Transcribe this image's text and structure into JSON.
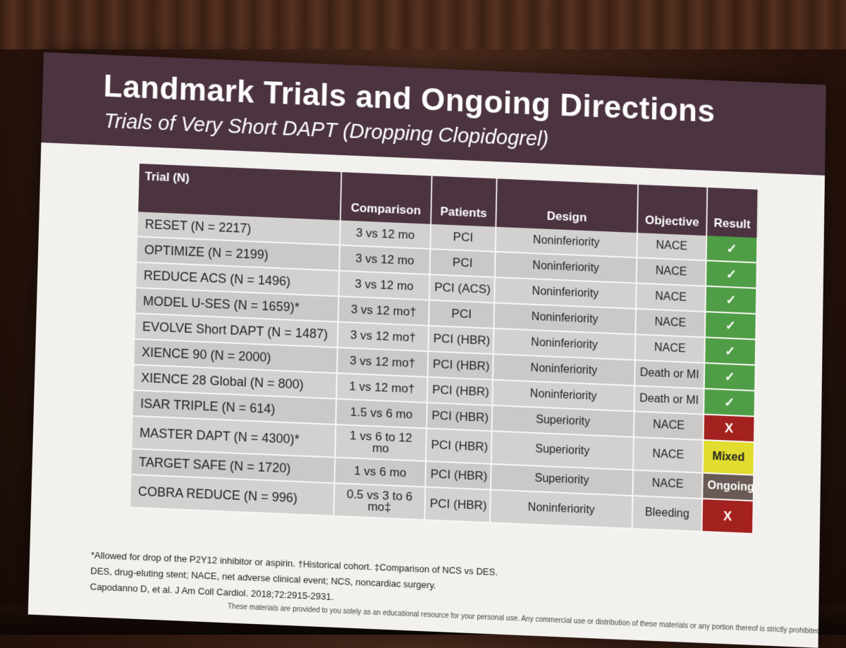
{
  "slide": {
    "title": "Landmark Trials and Ongoing Directions",
    "subtitle": "Trials of Very Short DAPT (Dropping Clopidogrel)"
  },
  "table": {
    "headers": [
      "Trial (N)",
      "Comparison",
      "Patients",
      "Design",
      "Objective",
      "Result"
    ],
    "rows": [
      {
        "trial": "RESET (N = 2217)",
        "comparison": "3 vs 12 mo",
        "patients": "PCI",
        "design": "Noninferiority",
        "objective": "NACE",
        "result": "✓",
        "result_type": "check"
      },
      {
        "trial": "OPTIMIZE (N = 2199)",
        "comparison": "3 vs 12 mo",
        "patients": "PCI",
        "design": "Noninferiority",
        "objective": "NACE",
        "result": "✓",
        "result_type": "check"
      },
      {
        "trial": "REDUCE ACS (N = 1496)",
        "comparison": "3 vs 12 mo",
        "patients": "PCI (ACS)",
        "design": "Noninferiority",
        "objective": "NACE",
        "result": "✓",
        "result_type": "check"
      },
      {
        "trial": "MODEL U-SES (N = 1659)*",
        "comparison": "3 vs 12 mo†",
        "patients": "PCI",
        "design": "Noninferiority",
        "objective": "NACE",
        "result": "✓",
        "result_type": "check"
      },
      {
        "trial": "EVOLVE Short DAPT (N = 1487)",
        "comparison": "3 vs 12 mo†",
        "patients": "PCI (HBR)",
        "design": "Noninferiority",
        "objective": "NACE",
        "result": "✓",
        "result_type": "check"
      },
      {
        "trial": "XIENCE 90 (N = 2000)",
        "comparison": "3 vs 12 mo†",
        "patients": "PCI (HBR)",
        "design": "Noninferiority",
        "objective": "Death or MI",
        "result": "✓",
        "result_type": "check"
      },
      {
        "trial": "XIENCE 28 Global (N = 800)",
        "comparison": "1 vs 12 mo†",
        "patients": "PCI (HBR)",
        "design": "Noninferiority",
        "objective": "Death or MI",
        "result": "✓",
        "result_type": "check"
      },
      {
        "trial": "ISAR TRIPLE (N = 614)",
        "comparison": "1.5 vs 6 mo",
        "patients": "PCI (HBR)",
        "design": "Superiority",
        "objective": "NACE",
        "result": "X",
        "result_type": "x"
      },
      {
        "trial": "MASTER DAPT (N = 4300)*",
        "comparison": "1 vs 6 to 12 mo",
        "patients": "PCI (HBR)",
        "design": "Superiority",
        "objective": "NACE",
        "result": "Mixed",
        "result_type": "mixed"
      },
      {
        "trial": "TARGET SAFE (N = 1720)",
        "comparison": "1 vs 6 mo",
        "patients": "PCI (HBR)",
        "design": "Superiority",
        "objective": "NACE",
        "result": "Ongoing",
        "result_type": "ongoing"
      },
      {
        "trial": "COBRA REDUCE (N = 996)",
        "comparison": "0.5 vs 3 to 6 mo‡",
        "patients": "PCI (HBR)",
        "design": "Noninferiority",
        "objective": "Bleeding",
        "result": "X",
        "result_type": "x"
      }
    ]
  },
  "footnotes": {
    "line1": "*Allowed for drop of the P2Y12 inhibitor or aspirin. †Historical cohort. ‡Comparison of NCS vs DES.",
    "line2": "DES, drug-eluting stent; NACE, net adverse clinical event; NCS, noncardiac surgery.",
    "citation": "Capodanno D, et al. J Am Coll Cardiol. 2018;72:2915-2931.",
    "disclaimer": "These materials are provided to you solely as an educational resource for your personal use. Any commercial use or distribution of these materials or any portion thereof is strictly prohibited."
  },
  "colors": {
    "header": "#4b3340",
    "check": "#4f9d46",
    "x": "#a3211e",
    "mixed": "#e2dc2f",
    "ongoing": "#6a5a55"
  }
}
